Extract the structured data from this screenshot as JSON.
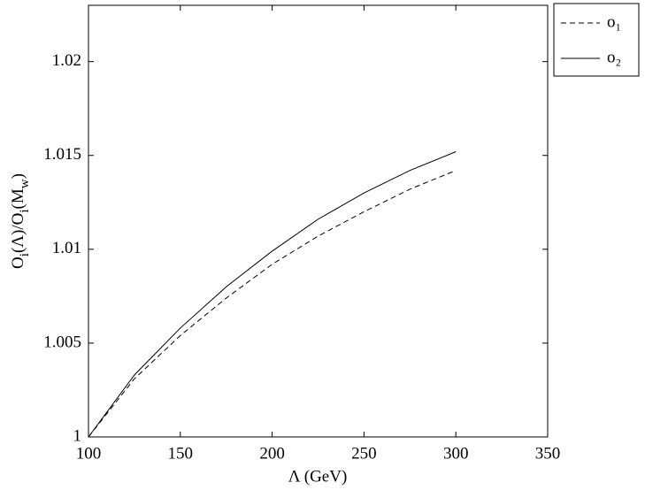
{
  "chart_data": {
    "type": "line",
    "xlabel": "Λ (GeV)",
    "ylabel": [
      "O",
      "i",
      "(Λ)/O",
      "i",
      "(M",
      "w",
      ")"
    ],
    "x": [
      100,
      125,
      150,
      175,
      200,
      225,
      250,
      275,
      300
    ],
    "series": [
      {
        "name": "o₁",
        "color": "#000000",
        "dash": true,
        "values": [
          1,
          1.0031,
          1.0054,
          1.0074,
          1.0092,
          1.0107,
          1.012,
          1.0132,
          1.0142
        ]
      },
      {
        "name": "o₂",
        "color": "#000000",
        "dash": false,
        "values": [
          1,
          1.0033,
          1.0058,
          1.008,
          1.0099,
          1.0116,
          1.013,
          1.0142,
          1.0152
        ]
      }
    ],
    "xlim": [
      100,
      350
    ],
    "xticks": [
      100,
      150,
      200,
      250,
      300,
      350
    ],
    "ylim": [
      1,
      1.023
    ],
    "yticks": [
      1,
      1.005,
      1.01,
      1.015,
      1.02
    ],
    "legend": "outside-top-right"
  }
}
